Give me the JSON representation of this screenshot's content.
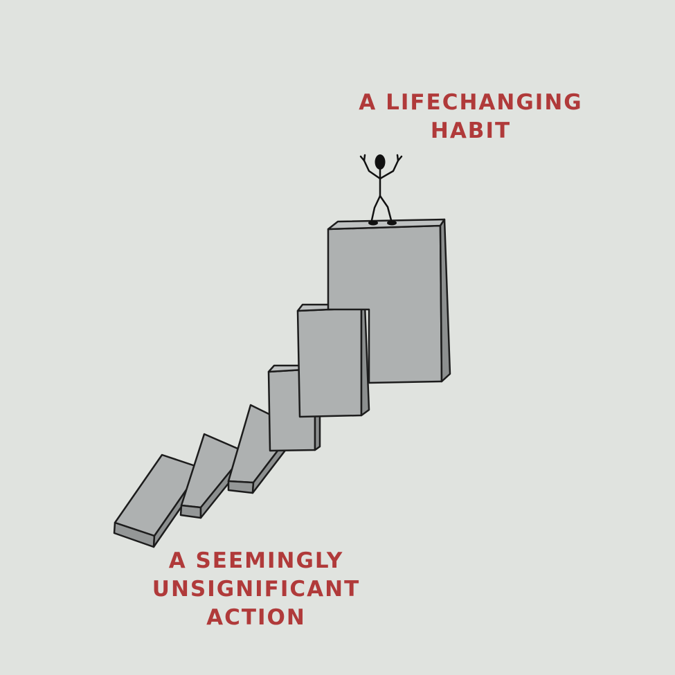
{
  "top_caption": {
    "line1": "A LIFECHANGING",
    "line2": "HABIT"
  },
  "bottom_caption": {
    "line1": "A SEEMINGLY",
    "line2": "UNSIGNIFICANT",
    "line3": "ACTION"
  },
  "colors": {
    "background": "#e0e3df",
    "caption_text": "#b03a3a",
    "domino_face": "#aeb1b1",
    "domino_side": "#949797",
    "outline": "#1c1c1c"
  }
}
